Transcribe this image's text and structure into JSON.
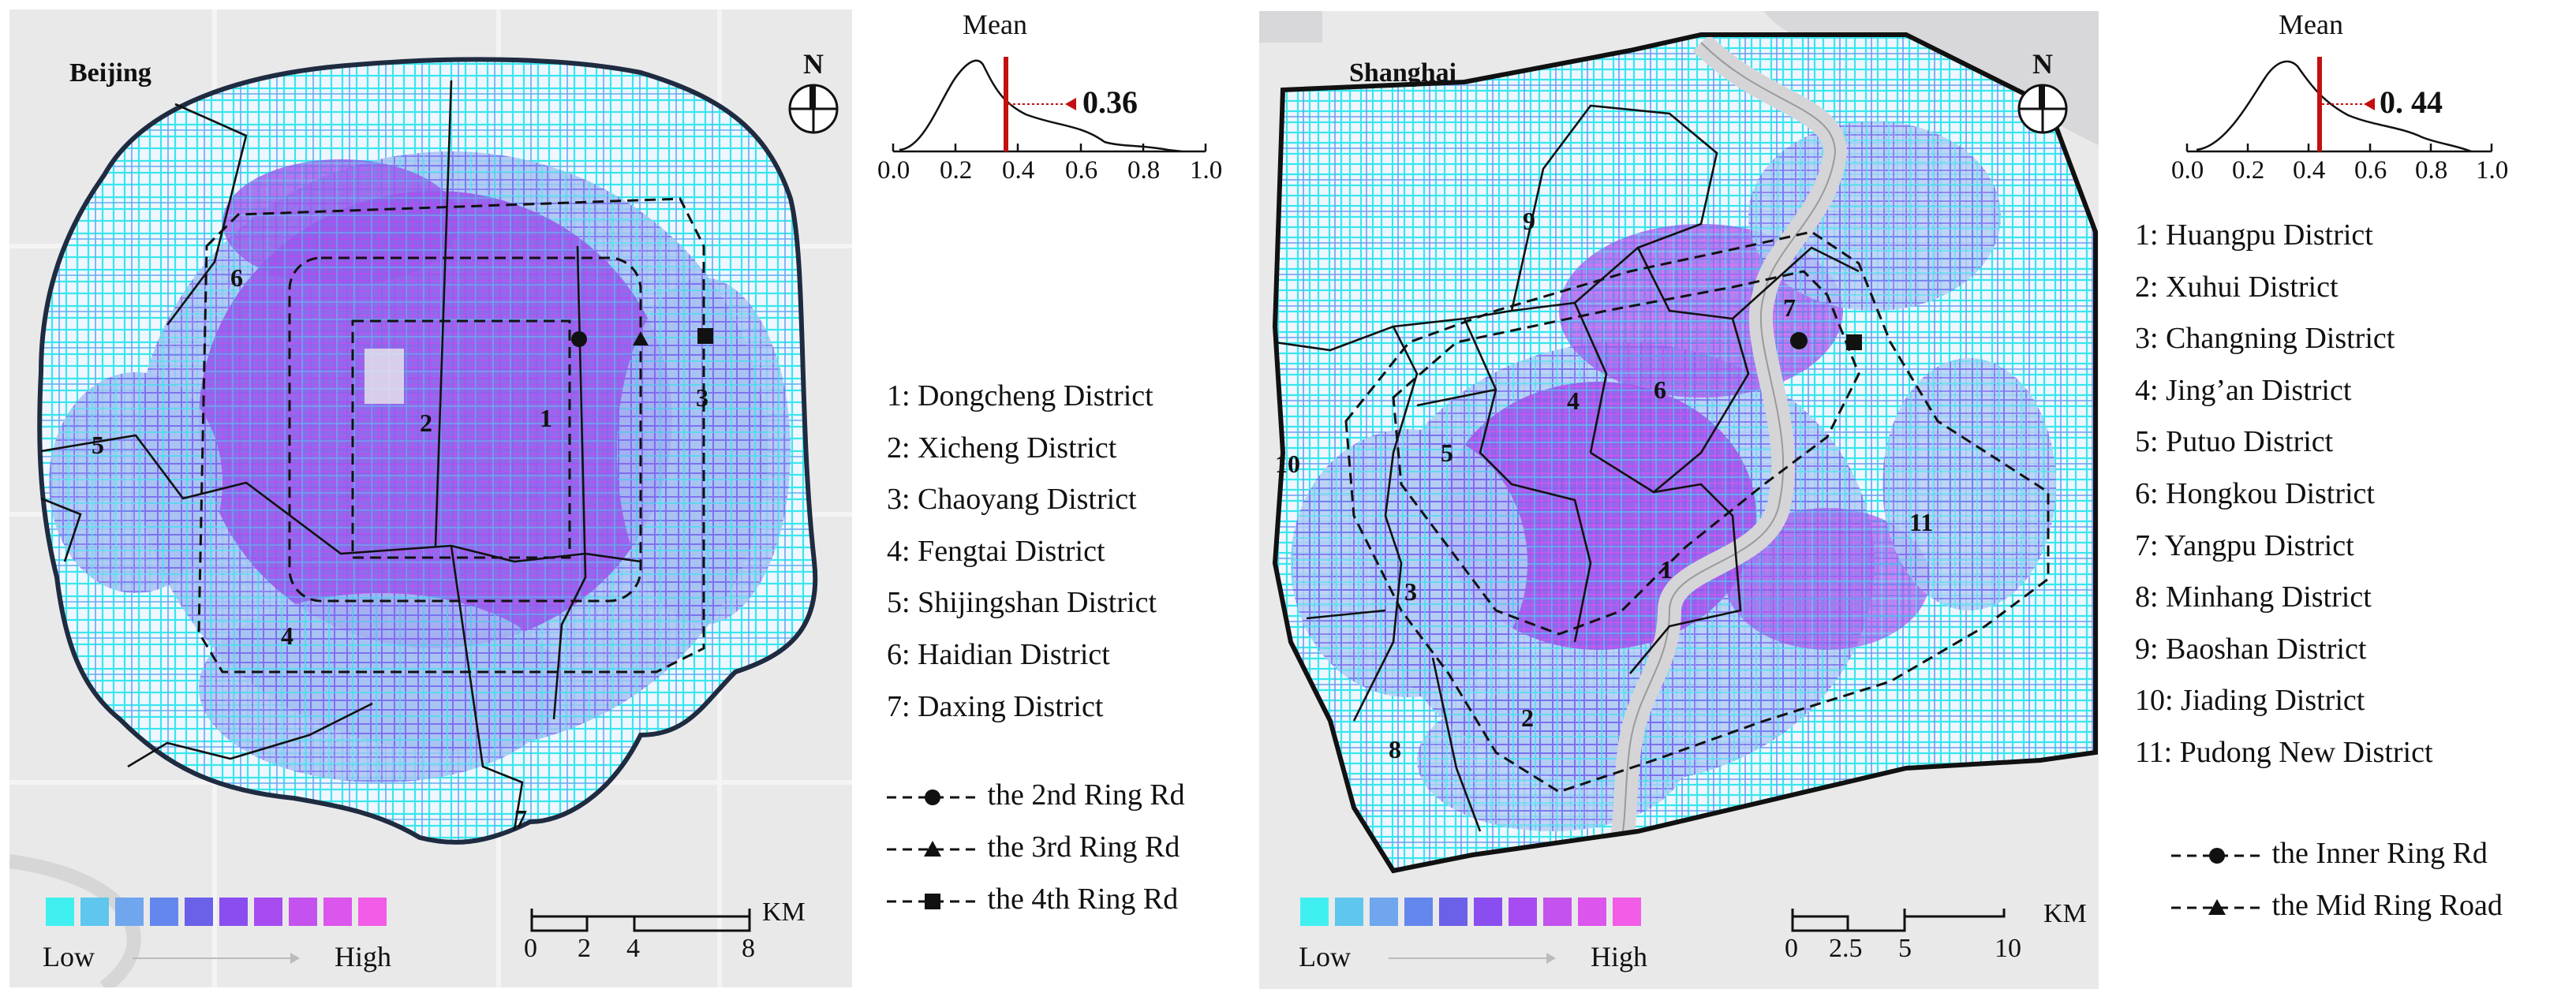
{
  "legend": {
    "low": "Low",
    "high": "High",
    "colors": [
      "#40f0f0",
      "#5fc6ee",
      "#6fa6ee",
      "#6487ee",
      "#6b60e8",
      "#8a4ef0",
      "#a64cf0",
      "#c452ee",
      "#dc55ec",
      "#f25ce6"
    ]
  },
  "beijing": {
    "title": "Beijing",
    "north": "N",
    "district_numbers": [
      "1",
      "2",
      "3",
      "4",
      "5",
      "6",
      "7"
    ],
    "scale": {
      "ticks": [
        "0",
        "2",
        "4",
        "8"
      ],
      "unit": "KM"
    },
    "distribution": {
      "mean_label": "Mean",
      "mean_value": "0.36",
      "ticks": [
        "0.0",
        "0.2",
        "0.4",
        "0.6",
        "0.8",
        "1.0"
      ],
      "mean": 0.36
    },
    "districts": [
      "1: Dongcheng District",
      "2: Xicheng District",
      "3: Chaoyang District",
      "4: Fengtai District",
      "5: Shijingshan District",
      "6: Haidian District",
      "7: Daxing District"
    ],
    "rings": [
      "the 2nd Ring Rd",
      "the 3rd Ring Rd",
      "the 4th Ring Rd"
    ]
  },
  "shanghai": {
    "title": "Shanghai",
    "north": "N",
    "district_numbers": [
      "1",
      "2",
      "3",
      "4",
      "5",
      "6",
      "7",
      "8",
      "9",
      "10",
      "11"
    ],
    "scale": {
      "ticks": [
        "0",
        "2.5",
        "5",
        "10"
      ],
      "unit": "KM"
    },
    "distribution": {
      "mean_label": "Mean",
      "mean_value": "0. 44",
      "ticks": [
        "0.0",
        "0.2",
        "0.4",
        "0.6",
        "0.8",
        "1.0"
      ],
      "mean": 0.44
    },
    "districts": [
      "1: Huangpu District",
      "2: Xuhui District",
      "3: Changning District",
      "4: Jing’an District",
      "5: Putuo District",
      "6: Hongkou District",
      "7: Yangpu District",
      "8: Minhang District",
      "9: Baoshan District",
      "10: Jiading District",
      "11: Pudong New District"
    ],
    "rings": [
      "the Inner Ring Rd",
      "the Mid Ring Road"
    ]
  }
}
